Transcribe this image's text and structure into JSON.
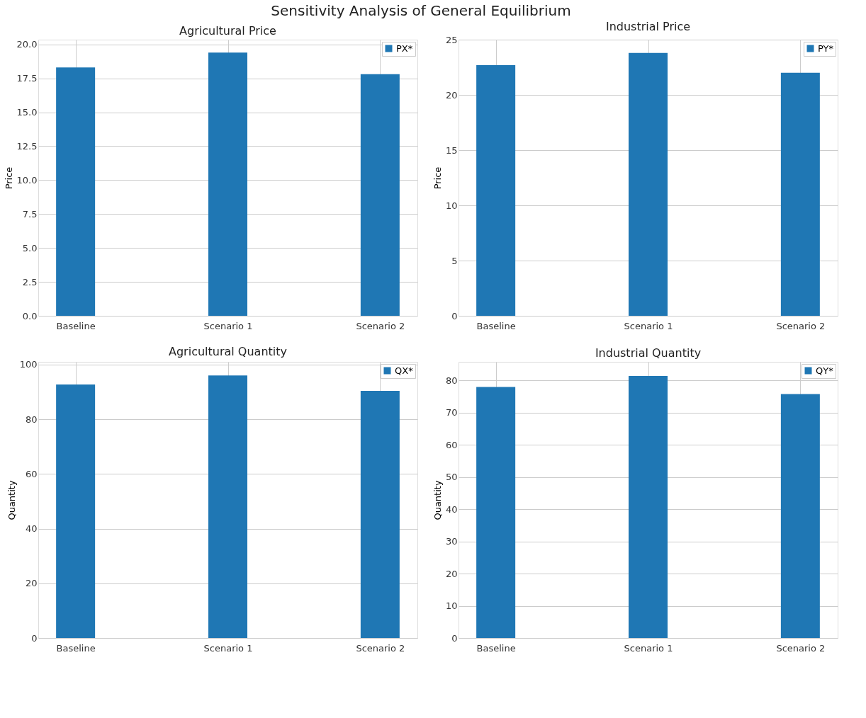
{
  "chart_data": [
    {
      "type": "bar",
      "title": "Agricultural Price",
      "annotations": [
        "Sensitivity Analysis of General Equilibrium"
      ],
      "ylabel": "Price",
      "categories": [
        "Baseline",
        "Scenario 1",
        "Scenario 2"
      ],
      "series": [
        {
          "name": "PX*",
          "color": "#1f77b4",
          "values": [
            18.3,
            19.4,
            17.8
          ]
        }
      ],
      "ylim": [
        0,
        20.35
      ],
      "yticks": [
        {
          "value": 0,
          "label": "0.0"
        },
        {
          "value": 2.5,
          "label": "2.5"
        },
        {
          "value": 5,
          "label": "5.0"
        },
        {
          "value": 7.5,
          "label": "7.5"
        },
        {
          "value": 10,
          "label": "10.0"
        },
        {
          "value": 12.5,
          "label": "12.5"
        },
        {
          "value": 15,
          "label": "15.0"
        },
        {
          "value": 17.5,
          "label": "17.5"
        },
        {
          "value": 20,
          "label": "20.0"
        }
      ],
      "grid": true,
      "legend": "top right"
    },
    {
      "type": "bar",
      "title": "Industrial Price",
      "ylabel": "Price",
      "categories": [
        "Baseline",
        "Scenario 1",
        "Scenario 2"
      ],
      "series": [
        {
          "name": "PY*",
          "color": "#1f77b4",
          "values": [
            22.7,
            23.8,
            22.0
          ]
        }
      ],
      "ylim": [
        0,
        25
      ],
      "yticks": [
        0,
        5,
        10,
        15,
        20,
        25
      ],
      "grid": true,
      "legend": "top right"
    },
    {
      "type": "bar",
      "title": "Agricultural Quantity",
      "ylabel": "Quantity",
      "categories": [
        "Baseline",
        "Scenario 1",
        "Scenario 2"
      ],
      "series": [
        {
          "name": "QX*",
          "color": "#1f77b4",
          "values": [
            92.7,
            96.0,
            90.4
          ]
        }
      ],
      "ylim": [
        0,
        101
      ],
      "yticks": [
        0,
        20,
        40,
        60,
        80,
        100
      ],
      "grid": true,
      "legend": "top right"
    },
    {
      "type": "bar",
      "title": "Industrial Quantity",
      "ylabel": "Quantity",
      "categories": [
        "Baseline",
        "Scenario 1",
        "Scenario 2"
      ],
      "series": [
        {
          "name": "QY*",
          "color": "#1f77b4",
          "values": [
            78.0,
            81.4,
            75.8
          ]
        }
      ],
      "ylim": [
        0,
        85.8
      ],
      "yticks": [
        0,
        10,
        20,
        30,
        40,
        50,
        60,
        70,
        80
      ],
      "grid": true,
      "legend": "top right"
    }
  ]
}
